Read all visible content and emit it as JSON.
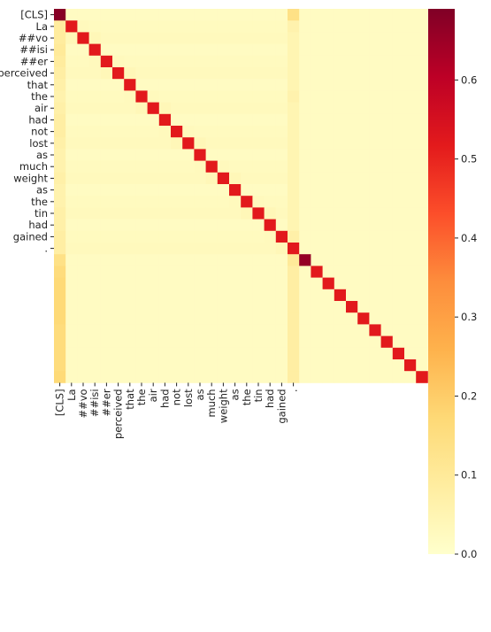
{
  "chart_data": {
    "type": "heatmap",
    "title": "",
    "xlabel": "",
    "ylabel": "",
    "x_tick_labels": [
      "[CLS]",
      "La",
      "##vo",
      "##isi",
      "##er",
      "perceived",
      "that",
      "the",
      "air",
      "had",
      "not",
      "lost",
      "as",
      "much",
      "weight",
      "as",
      "the",
      "tin",
      "had",
      "gained",
      "."
    ],
    "y_tick_labels": [
      "[CLS]",
      "La",
      "##vo",
      "##isi",
      "##er",
      "perceived",
      "that",
      "the",
      "air",
      "had",
      "not",
      "lost",
      "as",
      "much",
      "weight",
      "as",
      "the",
      "tin",
      "had",
      "gained",
      "."
    ],
    "matrix_size": 32,
    "labeled_count": 21,
    "diagonal_values": [
      0.68,
      0.52,
      0.52,
      0.52,
      0.52,
      0.52,
      0.52,
      0.52,
      0.52,
      0.52,
      0.52,
      0.52,
      0.52,
      0.52,
      0.52,
      0.52,
      0.52,
      0.52,
      0.52,
      0.52,
      0.52,
      0.66,
      0.52,
      0.52,
      0.52,
      0.52,
      0.52,
      0.52,
      0.52,
      0.52,
      0.52,
      0.52
    ],
    "first_column_values": [
      0.68,
      0.09,
      0.09,
      0.1,
      0.09,
      0.08,
      0.07,
      0.06,
      0.07,
      0.08,
      0.08,
      0.07,
      0.06,
      0.06,
      0.07,
      0.06,
      0.06,
      0.07,
      0.07,
      0.08,
      0.08,
      0.14,
      0.16,
      0.17,
      0.17,
      0.17,
      0.17,
      0.16,
      0.16,
      0.16,
      0.16,
      0.17
    ],
    "cls_column_index": 20,
    "cls_column_values": [
      0.14,
      0.06,
      0.05,
      0.05,
      0.05,
      0.05,
      0.05,
      0.06,
      0.05,
      0.05,
      0.05,
      0.05,
      0.05,
      0.05,
      0.05,
      0.05,
      0.05,
      0.05,
      0.05,
      0.07,
      0.52,
      0.1,
      0.08,
      0.08,
      0.08,
      0.08,
      0.08,
      0.08,
      0.08,
      0.08,
      0.08,
      0.08
    ],
    "background_value": 0.02,
    "colorscale": "YlOrRd",
    "colorbar": {
      "min": 0.0,
      "max": 0.69,
      "ticks": [
        0.0,
        0.1,
        0.2,
        0.3,
        0.4,
        0.5,
        0.6
      ],
      "tick_labels": [
        "0.0",
        "0.1",
        "0.2",
        "0.3",
        "0.4",
        "0.5",
        "0.6"
      ]
    }
  }
}
